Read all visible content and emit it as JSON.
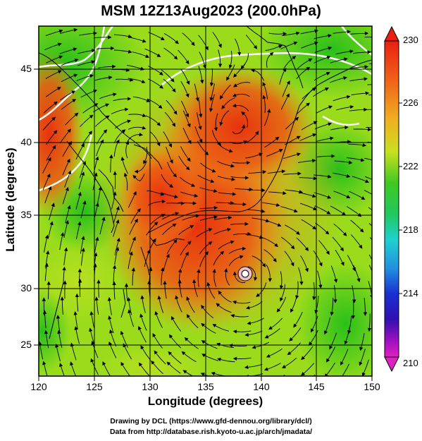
{
  "title": "MSM 12Z13Aug2023 (200.0hPa)",
  "xlabel": "Longitude (degrees)",
  "ylabel": "Latitude  (degrees)",
  "x_ticks": [
    "120",
    "125",
    "130",
    "135",
    "140",
    "145",
    "150"
  ],
  "y_ticks": [
    "25",
    "30",
    "35",
    "40",
    "45"
  ],
  "colorbar": {
    "top_label": "230",
    "bottom_label": "210",
    "tick_labels": [
      "226",
      "222",
      "218",
      "214"
    ]
  },
  "credits": {
    "line1": "Drawing by DCL (https://www.gfd-dennou.org/library/dcl/)",
    "line2": "Data from http://database.rish.kyoto-u.ac.jp/arch/jmadata/"
  },
  "colors": {
    "warm_core": "#e02a10",
    "orange": "#f07a18",
    "yellow_green": "#a8e018",
    "green": "#2ec21a",
    "contour": "#ffffff",
    "streamline": "#000000"
  }
}
